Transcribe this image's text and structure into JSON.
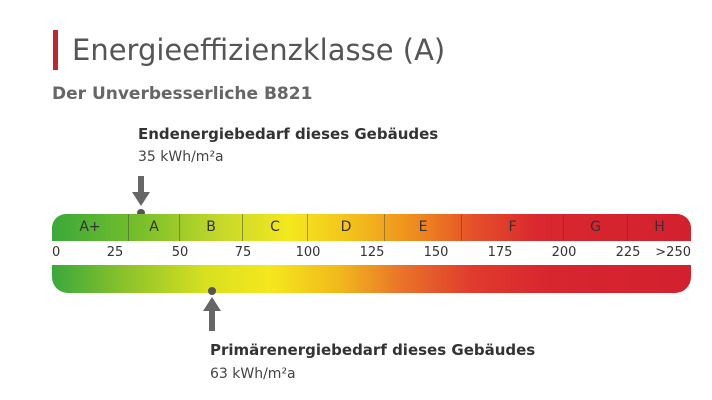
{
  "header": {
    "title": "Energieeffizienzklasse (A)",
    "subtitle": "Der Unverbesserliche B821"
  },
  "endenergie": {
    "label": "Endenergiebedarf dieses Gebäudes",
    "value_text": "35 kWh/m²a",
    "value": 35
  },
  "primaerenergie": {
    "label": "Primärenergiebedarf dieses Gebäudes",
    "value_text": "63 kWh/m²a",
    "value": 63
  },
  "scale": {
    "min": 0,
    "max": 250,
    "ticks": [
      "0",
      "25",
      "50",
      "75",
      "100",
      "125",
      "150",
      "175",
      "200",
      "225",
      ">250"
    ],
    "classes": [
      {
        "label": "A+",
        "from": 0,
        "to": 30
      },
      {
        "label": "A",
        "from": 30,
        "to": 50
      },
      {
        "label": "B",
        "from": 50,
        "to": 75
      },
      {
        "label": "C",
        "from": 75,
        "to": 100
      },
      {
        "label": "D",
        "from": 100,
        "to": 130
      },
      {
        "label": "E",
        "from": 130,
        "to": 160
      },
      {
        "label": "F",
        "from": 160,
        "to": 200
      },
      {
        "label": "G",
        "from": 200,
        "to": 250
      },
      {
        "label": "H",
        "from": 250,
        "to": 262
      }
    ]
  },
  "colors": {
    "accent": "#c0272d",
    "marker": "#555555"
  }
}
